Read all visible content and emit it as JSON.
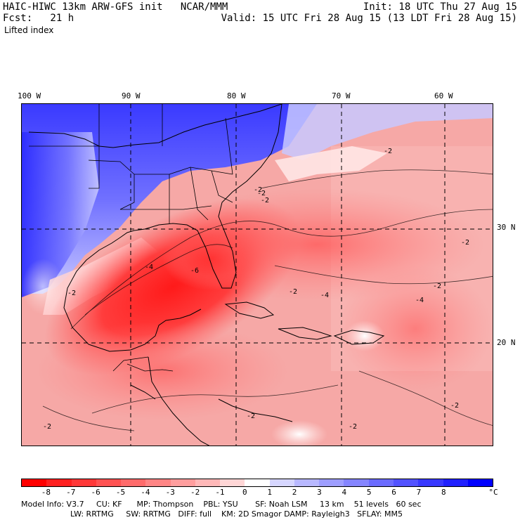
{
  "header": {
    "left_line1": "HAIC-HIWC 13km ARW-GFS init   NCAR/MMM",
    "left_line2": "Fcst:   21 h",
    "left_line3": "Lifted index",
    "right_line1": "Init: 18 UTC Thu 27 Aug 15",
    "right_line2": "Valid: 15 UTC Fri 28 Aug 15 (13 LDT Fri 28 Aug 15)"
  },
  "longitude_labels": [
    "100 W",
    "90 W",
    "80 W",
    "70 W",
    "60 W"
  ],
  "latitude_labels": [
    "30 N",
    "20 N"
  ],
  "contour_labels": [
    "-2",
    "-4",
    "-6",
    "-2",
    "-2",
    "-2",
    "-4",
    "-2",
    "-2",
    "-2",
    "-2",
    "-2",
    "-2",
    "-4",
    "-2",
    "-2"
  ],
  "colorbar": {
    "colors": [
      "#ff0000",
      "#ff2020",
      "#ff3838",
      "#ff5252",
      "#ff6b6b",
      "#ff8585",
      "#ff9e9e",
      "#ffb8b8",
      "#ffd6d6",
      "#ffffff",
      "#d6d6ff",
      "#b8b8ff",
      "#9e9eff",
      "#8585ff",
      "#6b6bff",
      "#5252ff",
      "#3838ff",
      "#2020ff",
      "#0000ff"
    ],
    "tick_labels": [
      "-8",
      "-7",
      "-6",
      "-5",
      "-4",
      "-3",
      "-2",
      "-1",
      "0",
      "1",
      "2",
      "3",
      "4",
      "5",
      "6",
      "7",
      "8"
    ],
    "unit": "°C"
  },
  "footer": {
    "line1": "Model Info: V3.7     CU: KF      MP: Thompson    PBL: YSU       SF: Noah LSM     13 km    51 levels   60 sec",
    "line2": "LW: RRTMG     SW: RRTMG   DIFF: full    KM: 2D Smagor DAMP: Rayleigh3   SFLAY: MM5"
  }
}
